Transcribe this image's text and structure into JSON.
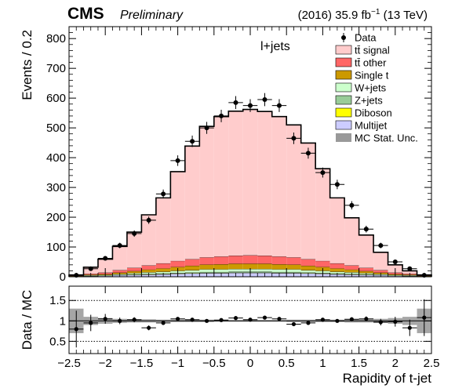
{
  "header": {
    "experiment": "CMS",
    "status": "Preliminary",
    "lumi_prefix": "(2016) 35.9 fb",
    "lumi_exp": "−1",
    "energy": " (13 TeV)"
  },
  "chart_data": [
    {
      "type": "bar",
      "subtype": "stacked-histogram",
      "channel": "l+jets",
      "ylabel": "Events / 0.2",
      "ylim": [
        0,
        840
      ],
      "xlim": [
        -2.5,
        2.5
      ],
      "yticks": [
        0,
        100,
        200,
        300,
        400,
        500,
        600,
        700,
        800
      ],
      "bin_edges": [
        -2.5,
        -2.3,
        -2.1,
        -1.9,
        -1.7,
        -1.5,
        -1.3,
        -1.1,
        -0.9,
        -0.7,
        -0.5,
        -0.3,
        -0.1,
        0.1,
        0.3,
        0.5,
        0.7,
        0.9,
        1.1,
        1.3,
        1.5,
        1.7,
        1.9,
        2.1,
        2.3,
        2.5
      ],
      "series": [
        {
          "name": "Multijet",
          "color": "#ccccff",
          "values": [
            1,
            2,
            3,
            5,
            6,
            7,
            8,
            10,
            11,
            12,
            12,
            13,
            13,
            13,
            12,
            12,
            11,
            10,
            8,
            7,
            6,
            5,
            3,
            2,
            1
          ]
        },
        {
          "name": "Diboson",
          "color": "#ffff00",
          "values": [
            0,
            0,
            0,
            0,
            1,
            1,
            1,
            1,
            1,
            1,
            1,
            1,
            1,
            1,
            1,
            1,
            1,
            1,
            1,
            1,
            1,
            0,
            0,
            0,
            0
          ]
        },
        {
          "name": "Z+jets",
          "color": "#99cc99",
          "values": [
            0,
            1,
            1,
            1,
            1,
            2,
            2,
            2,
            2,
            3,
            3,
            3,
            3,
            3,
            3,
            3,
            2,
            2,
            2,
            2,
            1,
            1,
            1,
            1,
            0
          ]
        },
        {
          "name": "W+jets",
          "color": "#ccffcc",
          "values": [
            1,
            2,
            2,
            3,
            4,
            5,
            6,
            7,
            8,
            9,
            9,
            9,
            9,
            9,
            9,
            9,
            8,
            7,
            6,
            5,
            4,
            3,
            2,
            2,
            1
          ]
        },
        {
          "name": "Single t",
          "color": "#cc9900",
          "values": [
            1,
            2,
            3,
            5,
            7,
            9,
            11,
            13,
            15,
            16,
            17,
            18,
            18,
            18,
            17,
            16,
            15,
            13,
            11,
            9,
            7,
            5,
            3,
            2,
            1
          ]
        },
        {
          "name": "tt̄ other",
          "color": "#ff6666",
          "values": [
            1,
            3,
            5,
            8,
            11,
            14,
            17,
            20,
            22,
            24,
            26,
            27,
            28,
            27,
            26,
            24,
            22,
            20,
            17,
            14,
            11,
            8,
            5,
            3,
            1
          ]
        },
        {
          "name": "tt̄ signal",
          "color": "#ffcccc",
          "values": [
            2,
            22,
            45,
            80,
            120,
            170,
            220,
            300,
            380,
            440,
            470,
            485,
            490,
            484,
            470,
            445,
            390,
            310,
            220,
            160,
            110,
            60,
            26,
            10,
            2
          ]
        }
      ],
      "data_points": {
        "name": "Data",
        "values": [
          5,
          27,
          62,
          105,
          145,
          190,
          278,
          390,
          455,
          500,
          540,
          585,
          575,
          595,
          575,
          465,
          415,
          350,
          310,
          240,
          160,
          105,
          50,
          27,
          5
        ]
      },
      "mc_stat_unc_label": "MC Stat. Unc."
    },
    {
      "type": "scatter",
      "subtype": "ratio",
      "ylabel": "Data / MC",
      "xlabel": "Rapidity of t-jet",
      "ylim": [
        0.2,
        1.85
      ],
      "yticks": [
        0.5,
        1,
        1.5
      ],
      "xticks": [
        -2.5,
        -2,
        -1.5,
        -1,
        -0.5,
        0,
        0.5,
        1,
        1.5,
        2,
        2.5
      ],
      "xtick_labels": [
        "−2.5",
        "−2",
        "−1.5",
        "−1",
        "−0.5",
        "0",
        "0.5",
        "1",
        "1.5",
        "2",
        "2.5"
      ],
      "ratio": [
        0.8,
        0.95,
        1.05,
        1.0,
        1.03,
        0.83,
        0.95,
        1.05,
        1.03,
        1.0,
        1.02,
        1.07,
        1.03,
        1.08,
        1.05,
        0.92,
        0.95,
        1.03,
        1.0,
        1.04,
        1.05,
        0.97,
        0.98,
        0.83,
        1.08
      ],
      "ratio_err": [
        0.45,
        0.2,
        0.12,
        0.08,
        0.06,
        0.06,
        0.05,
        0.04,
        0.04,
        0.04,
        0.03,
        0.03,
        0.03,
        0.03,
        0.03,
        0.04,
        0.04,
        0.04,
        0.04,
        0.05,
        0.06,
        0.08,
        0.12,
        0.2,
        0.45
      ],
      "mc_unc": [
        0.3,
        0.1,
        0.07,
        0.05,
        0.04,
        0.04,
        0.03,
        0.03,
        0.03,
        0.03,
        0.02,
        0.02,
        0.02,
        0.02,
        0.02,
        0.03,
        0.03,
        0.03,
        0.03,
        0.04,
        0.04,
        0.05,
        0.07,
        0.1,
        0.3
      ]
    }
  ]
}
